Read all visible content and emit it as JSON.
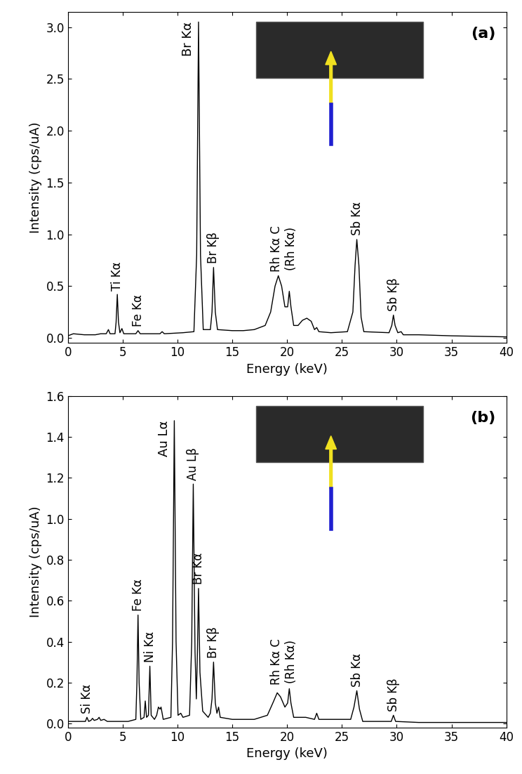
{
  "chart_data": [
    {
      "type": "line",
      "panel_label": "(a)",
      "x_label": "Energy (keV)",
      "y_label": "Intensity (cps/uA)",
      "color": "#000000",
      "x": [
        0,
        0.5,
        1.5,
        2.5,
        3.0,
        3.5,
        3.7,
        3.85,
        4.3,
        4.4,
        4.51,
        4.62,
        4.75,
        4.93,
        5.1,
        6.2,
        6.4,
        6.6,
        8.4,
        8.6,
        8.8,
        10.5,
        11.5,
        11.75,
        11.92,
        12.1,
        12.35,
        13.0,
        13.15,
        13.29,
        13.45,
        13.65,
        15,
        16,
        17,
        18,
        18.5,
        18.9,
        19.2,
        19.5,
        19.8,
        20.05,
        20.2,
        20.35,
        20.6,
        21.0,
        21.4,
        21.8,
        22.2,
        22.5,
        22.7,
        22.9,
        24,
        25.5,
        26.0,
        26.2,
        26.36,
        26.55,
        26.75,
        27.0,
        29.3,
        29.55,
        29.7,
        29.85,
        30.1,
        30.4,
        30.6,
        32,
        35,
        40
      ],
      "values": [
        0.02,
        0.04,
        0.03,
        0.03,
        0.04,
        0.04,
        0.08,
        0.04,
        0.04,
        0.15,
        0.42,
        0.15,
        0.05,
        0.09,
        0.04,
        0.04,
        0.07,
        0.04,
        0.04,
        0.06,
        0.04,
        0.05,
        0.06,
        0.8,
        3.05,
        0.8,
        0.08,
        0.08,
        0.25,
        0.68,
        0.25,
        0.08,
        0.07,
        0.07,
        0.08,
        0.12,
        0.25,
        0.5,
        0.6,
        0.5,
        0.3,
        0.3,
        0.45,
        0.3,
        0.12,
        0.12,
        0.17,
        0.19,
        0.16,
        0.08,
        0.1,
        0.06,
        0.05,
        0.06,
        0.25,
        0.7,
        0.95,
        0.7,
        0.2,
        0.06,
        0.05,
        0.12,
        0.22,
        0.12,
        0.05,
        0.06,
        0.03,
        0.03,
        0.02,
        0.01
      ],
      "xlim": [
        0,
        40
      ],
      "ylim": [
        -0.05,
        3.15
      ],
      "xticks": [
        0,
        5,
        10,
        15,
        20,
        25,
        30,
        35,
        40
      ],
      "yticks": [
        {
          "value": 0,
          "label": "0.0"
        },
        0.5,
        {
          "value": 1,
          "label": "1.0"
        },
        1.5,
        {
          "value": 2,
          "label": "2.0"
        },
        2.5,
        {
          "value": 3,
          "label": "3.0"
        }
      ],
      "annotations": [
        {
          "text": "Ti Kα",
          "x": 4.51,
          "y": 0.42
        },
        {
          "text": "Fe Kα",
          "x": 6.4,
          "y": 0.07
        },
        {
          "text": "Br Kα",
          "x": 11.92,
          "y": 3.05
        },
        {
          "text": "Br Kβ",
          "x": 13.29,
          "y": 0.68
        },
        {
          "text": "Rh Kα C\n(Rh Kα)",
          "x": 19.7,
          "y": 0.6
        },
        {
          "text": "Sb Kα",
          "x": 26.36,
          "y": 0.95
        },
        {
          "text": "Sb Kβ",
          "x": 29.7,
          "y": 0.22
        }
      ]
    },
    {
      "type": "line",
      "panel_label": "(b)",
      "x_label": "Energy (keV)",
      "y_label": "Intensity (cps/uA)",
      "color": "#000000",
      "x": [
        0,
        1.0,
        1.6,
        1.74,
        1.9,
        2.1,
        2.25,
        2.4,
        2.7,
        2.85,
        3.0,
        3.3,
        3.6,
        5.5,
        6.2,
        6.3,
        6.4,
        6.5,
        6.65,
        6.95,
        7.06,
        7.18,
        7.35,
        7.48,
        7.6,
        7.9,
        8.1,
        8.26,
        8.4,
        8.5,
        8.7,
        9.4,
        9.55,
        9.71,
        9.87,
        10.05,
        10.3,
        10.5,
        11.1,
        11.3,
        11.44,
        11.6,
        11.72,
        11.82,
        11.92,
        12.05,
        12.3,
        12.8,
        13.0,
        13.15,
        13.29,
        13.45,
        13.6,
        13.75,
        13.9,
        15,
        17,
        18.2,
        18.7,
        19.1,
        19.4,
        19.8,
        20.05,
        20.2,
        20.35,
        20.6,
        21.7,
        22.5,
        22.7,
        22.9,
        25.8,
        26.1,
        26.36,
        26.6,
        26.9,
        29.5,
        29.7,
        29.9,
        32,
        40
      ],
      "values": [
        0.01,
        0.01,
        0.01,
        0.03,
        0.01,
        0.015,
        0.025,
        0.015,
        0.02,
        0.03,
        0.015,
        0.02,
        0.01,
        0.01,
        0.02,
        0.2,
        0.53,
        0.2,
        0.02,
        0.03,
        0.11,
        0.03,
        0.04,
        0.28,
        0.04,
        0.02,
        0.04,
        0.08,
        0.07,
        0.08,
        0.02,
        0.03,
        0.4,
        1.48,
        0.4,
        0.04,
        0.05,
        0.03,
        0.04,
        0.4,
        1.17,
        0.35,
        0.12,
        0.35,
        0.66,
        0.25,
        0.06,
        0.03,
        0.05,
        0.12,
        0.3,
        0.1,
        0.05,
        0.08,
        0.03,
        0.02,
        0.02,
        0.04,
        0.1,
        0.15,
        0.13,
        0.08,
        0.1,
        0.17,
        0.1,
        0.03,
        0.03,
        0.02,
        0.05,
        0.02,
        0.02,
        0.08,
        0.16,
        0.07,
        0.01,
        0.01,
        0.04,
        0.01,
        0.005,
        0.005
      ],
      "xlim": [
        0,
        40
      ],
      "ylim": [
        -0.02,
        1.6
      ],
      "xticks": [
        0,
        5,
        10,
        15,
        20,
        25,
        30,
        35,
        40
      ],
      "yticks": [
        {
          "value": 0,
          "label": "0.0"
        },
        0.2,
        0.4,
        0.6,
        0.8,
        {
          "value": 1,
          "label": "1.0"
        },
        1.2,
        1.4,
        1.6
      ],
      "annotations": [
        {
          "text": "Si Kα",
          "x": 1.74,
          "y": 0.03
        },
        {
          "text": "Fe Kα",
          "x": 6.4,
          "y": 0.53
        },
        {
          "text": "Ni Kα",
          "x": 7.48,
          "y": 0.28
        },
        {
          "text": "Au Lα",
          "x": 9.71,
          "y": 1.48
        },
        {
          "text": "Au Lβ",
          "x": 11.44,
          "y": 1.17
        },
        {
          "text": "Br Kα",
          "x": 11.92,
          "y": 0.66
        },
        {
          "text": "Br Kβ",
          "x": 13.29,
          "y": 0.3
        },
        {
          "text": "Rh Kα C\n(Rh Kα)",
          "x": 19.7,
          "y": 0.17
        },
        {
          "text": "Sb Kα",
          "x": 26.36,
          "y": 0.16
        },
        {
          "text": "Sb Kβ",
          "x": 29.7,
          "y": 0.04
        }
      ]
    }
  ]
}
